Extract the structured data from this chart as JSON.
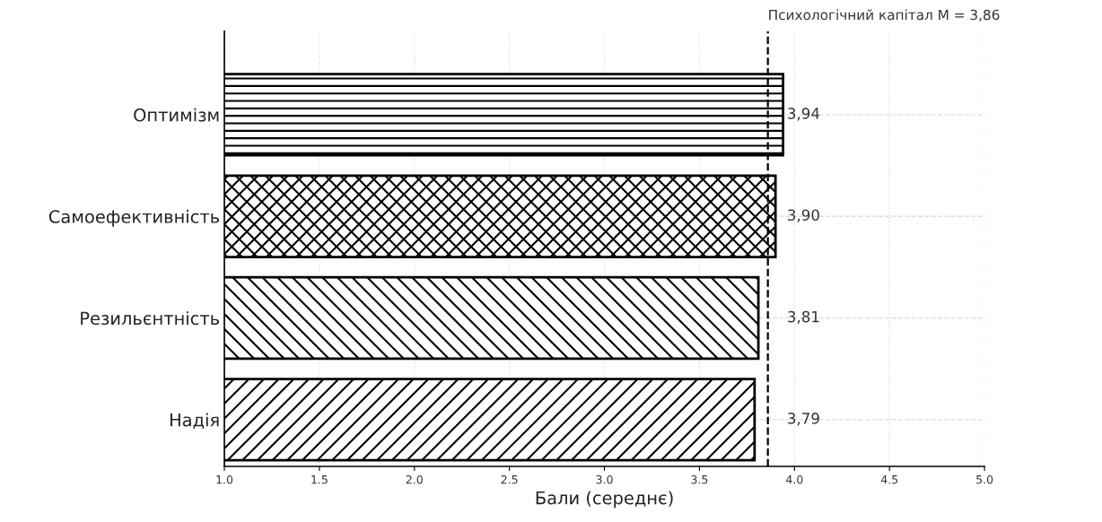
{
  "chart_data": {
    "type": "bar",
    "orientation": "horizontal",
    "xlabel": "Бали (середнє)",
    "categories": [
      "Оптимізм",
      "Самоефективність",
      "Резильєнтність",
      "Надія"
    ],
    "values": [
      3.94,
      3.9,
      3.81,
      3.79
    ],
    "value_labels": [
      "3,94",
      "3,90",
      "3,81",
      "3,79"
    ],
    "color": "#000000",
    "xlim": [
      1.0,
      5.0
    ],
    "xticks": [
      {
        "value": 1.0,
        "label": "1.0"
      },
      1.5,
      {
        "value": 2.0,
        "label": "2.0"
      },
      2.5,
      {
        "value": 3.0,
        "label": "3.0"
      },
      3.5,
      {
        "value": 4.0,
        "label": "4.0"
      },
      4.5,
      {
        "value": 5.0,
        "label": "5.0"
      }
    ],
    "ref_lines": [
      {
        "axis": "x",
        "value": 3.86,
        "label": "Психологічний капітал M = 3,86",
        "color": "#000000",
        "line_style": "dashed"
      }
    ],
    "grid": true
  }
}
